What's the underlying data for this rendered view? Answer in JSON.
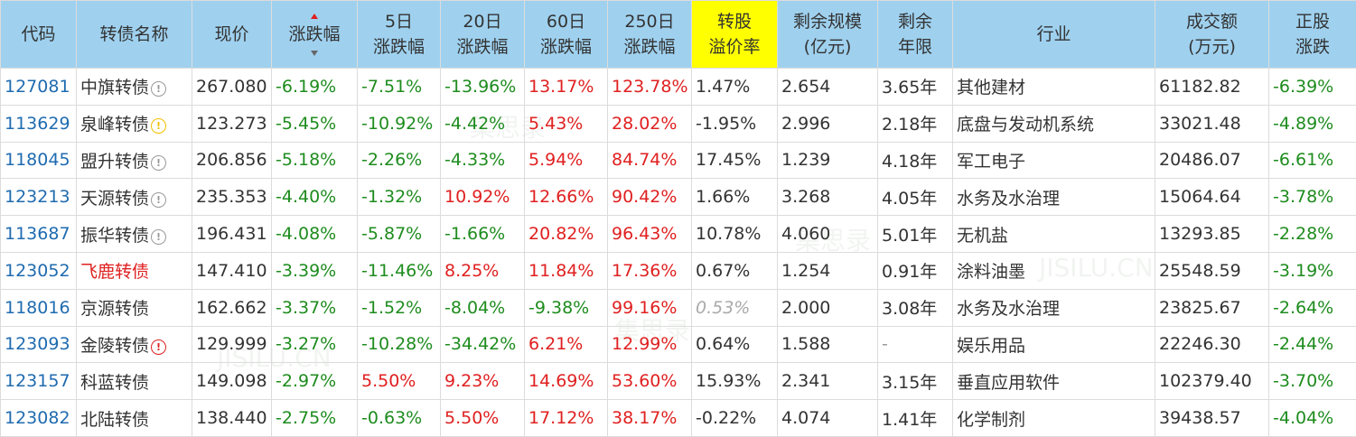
{
  "columns": [
    "代码",
    "转债名称",
    "现价",
    "涨跌幅",
    "5日\n涨跌幅",
    "20日\n涨跌幅",
    "60日\n涨跌幅",
    "250日\n涨跌幅",
    "转股\n溢价率",
    "剩余规模\n(亿元)",
    "剩余\n年限",
    "行业",
    "成交额\n(万元)",
    "正股\n涨跌"
  ],
  "header": {
    "code": "代码",
    "name": "转债名称",
    "price": "现价",
    "change": "涨跌幅",
    "d5_l1": "5日",
    "d5_l2": "涨跌幅",
    "d20_l1": "20日",
    "d20_l2": "涨跌幅",
    "d60_l1": "60日",
    "d60_l2": "涨跌幅",
    "d250_l1": "250日",
    "d250_l2": "涨跌幅",
    "premium_l1": "转股",
    "premium_l2": "溢价率",
    "size_l1": "剩余规模",
    "size_l2": "(亿元)",
    "years_l1": "剩余",
    "years_l2": "年限",
    "industry": "行业",
    "turnover_l1": "成交额",
    "turnover_l2": "(万元)",
    "stock_l1": "正股",
    "stock_l2": "涨跌"
  },
  "watermark": [
    "集思录",
    "JISILU.CN"
  ],
  "rows": [
    {
      "code": "127081",
      "name": "中旗转债",
      "icon": "info-gray",
      "price": "267.080",
      "chg": "-6.19%",
      "d5": "-7.51%",
      "d20": "-13.96%",
      "d60": "13.17%",
      "d250": "123.78%",
      "premium": "1.47%",
      "size": "2.654",
      "years": "3.65年",
      "industry": "其他建材",
      "turnover": "61182.82",
      "stock": "-6.39%"
    },
    {
      "code": "113629",
      "name": "泉峰转债",
      "icon": "info-yellow",
      "price": "123.273",
      "chg": "-5.45%",
      "d5": "-10.92%",
      "d20": "-4.42%",
      "d60": "5.43%",
      "d250": "28.02%",
      "premium": "-1.95%",
      "size": "2.996",
      "years": "2.18年",
      "industry": "底盘与发动机系统",
      "turnover": "33021.48",
      "stock": "-4.89%"
    },
    {
      "code": "118045",
      "name": "盟升转债",
      "icon": "info-gray",
      "price": "206.856",
      "chg": "-5.18%",
      "d5": "-2.26%",
      "d20": "-4.33%",
      "d60": "5.94%",
      "d250": "84.74%",
      "premium": "17.45%",
      "size": "1.239",
      "years": "4.18年",
      "industry": "军工电子",
      "turnover": "20486.07",
      "stock": "-6.61%"
    },
    {
      "code": "123213",
      "name": "天源转债",
      "icon": "info-gray",
      "price": "235.353",
      "chg": "-4.40%",
      "d5": "-1.32%",
      "d20": "10.92%",
      "d60": "12.66%",
      "d250": "90.42%",
      "premium": "1.66%",
      "size": "3.268",
      "years": "4.05年",
      "industry": "水务及水治理",
      "turnover": "15064.64",
      "stock": "-3.78%"
    },
    {
      "code": "113687",
      "name": "振华转债",
      "icon": "info-gray",
      "price": "196.431",
      "chg": "-4.08%",
      "d5": "-5.87%",
      "d20": "-1.66%",
      "d60": "20.82%",
      "d250": "96.43%",
      "premium": "10.78%",
      "size": "4.060",
      "years": "5.01年",
      "industry": "无机盐",
      "turnover": "13293.85",
      "stock": "-2.28%"
    },
    {
      "code": "123052",
      "name": "飞鹿转债",
      "icon": "",
      "name_red": true,
      "price": "147.410",
      "chg": "-3.39%",
      "d5": "-11.46%",
      "d20": "8.25%",
      "d60": "11.84%",
      "d250": "17.36%",
      "premium": "0.67%",
      "size": "1.254",
      "years": "0.91年",
      "industry": "涂料油墨",
      "turnover": "25548.59",
      "stock": "-3.19%"
    },
    {
      "code": "118016",
      "name": "京源转债",
      "icon": "",
      "price": "162.662",
      "chg": "-3.37%",
      "d5": "-1.52%",
      "d20": "-8.04%",
      "d60": "-9.38%",
      "d250": "99.16%",
      "premium": "0.53%",
      "premium_muted": true,
      "size": "2.000",
      "years": "3.08年",
      "industry": "水务及水治理",
      "turnover": "23825.67",
      "stock": "-2.64%"
    },
    {
      "code": "123093",
      "name": "金陵转债",
      "icon": "info-red",
      "price": "129.999",
      "chg": "-3.27%",
      "d5": "-10.28%",
      "d20": "-34.42%",
      "d60": "6.21%",
      "d250": "12.99%",
      "premium": "0.64%",
      "size": "1.588",
      "years": "-",
      "industry": "娱乐用品",
      "turnover": "22246.30",
      "stock": "-2.44%"
    },
    {
      "code": "123157",
      "name": "科蓝转债",
      "icon": "",
      "price": "149.098",
      "chg": "-2.97%",
      "d5": "5.50%",
      "d20": "9.23%",
      "d60": "14.69%",
      "d250": "53.60%",
      "premium": "15.93%",
      "size": "2.341",
      "years": "3.15年",
      "industry": "垂直应用软件",
      "turnover": "102379.40",
      "stock": "-3.70%"
    },
    {
      "code": "123082",
      "name": "北陆转债",
      "icon": "",
      "price": "138.440",
      "chg": "-2.75%",
      "d5": "-0.63%",
      "d20": "5.50%",
      "d60": "17.12%",
      "d250": "38.17%",
      "premium": "-0.22%",
      "size": "4.074",
      "years": "1.41年",
      "industry": "化学制剂",
      "turnover": "39438.57",
      "stock": "-4.04%"
    }
  ],
  "colors": {
    "header_bg": "#9fd1ef",
    "highlight": "#ffff00",
    "up": "#e02020",
    "down": "#1e8c1e",
    "code": "#1f6bb0"
  }
}
